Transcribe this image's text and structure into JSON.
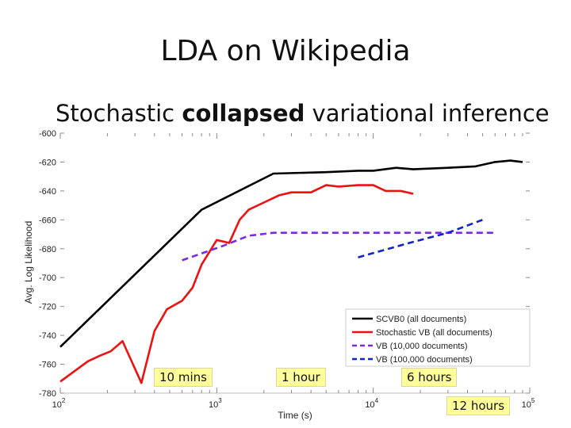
{
  "slide": {
    "title": "LDA on Wikipedia",
    "subtitle_prefix": "Stochastic ",
    "subtitle_bold": "collapsed",
    "subtitle_suffix": " variational inference"
  },
  "callouts": {
    "ten_mins": "10 mins",
    "one_hour": "1 hour",
    "six_hours": "6 hours",
    "twelve_hours": "12 hours"
  },
  "chart_data": {
    "type": "line",
    "title": "",
    "xlabel": "Time (s)",
    "ylabel": "Avg. Log Likelihood",
    "xscale": "log",
    "xlim": [
      100,
      100000
    ],
    "ylim": [
      -780,
      -600
    ],
    "x_ticks": [
      100,
      1000,
      10000,
      100000
    ],
    "x_tick_labels": [
      {
        "base": "10",
        "exp": "2"
      },
      {
        "base": "10",
        "exp": "3"
      },
      {
        "base": "10",
        "exp": "4"
      },
      {
        "base": "10",
        "exp": "5"
      }
    ],
    "y_ticks": [
      -600,
      -620,
      -640,
      -660,
      -680,
      -700,
      -720,
      -740,
      -760,
      -780
    ],
    "y_tick_labels": [
      "-600",
      "-620",
      "-640",
      "-660",
      "-680",
      "-700",
      "-720",
      "-740",
      "-760",
      "-780"
    ],
    "legend_position": "bottom-right",
    "series": [
      {
        "name": "SCVB0 (all documents)",
        "color": "#000000",
        "dash": "solid",
        "points": [
          [
            100,
            -748
          ],
          [
            800,
            -653
          ],
          [
            2300,
            -628
          ],
          [
            5000,
            -627
          ],
          [
            8000,
            -626
          ],
          [
            10000,
            -626
          ],
          [
            14000,
            -624
          ],
          [
            18000,
            -625
          ],
          [
            30000,
            -624
          ],
          [
            45000,
            -623
          ],
          [
            60000,
            -620
          ],
          [
            75000,
            -619
          ],
          [
            90000,
            -620
          ]
        ]
      },
      {
        "name": "Stochastic VB (all documents)",
        "color": "#ee1111",
        "dash": "solid",
        "points": [
          [
            100,
            -772
          ],
          [
            150,
            -758
          ],
          [
            180,
            -754
          ],
          [
            210,
            -751
          ],
          [
            250,
            -744
          ],
          [
            330,
            -773
          ],
          [
            400,
            -737
          ],
          [
            480,
            -722
          ],
          [
            600,
            -716
          ],
          [
            700,
            -707
          ],
          [
            800,
            -691
          ],
          [
            900,
            -682
          ],
          [
            1000,
            -674
          ],
          [
            1200,
            -676
          ],
          [
            1400,
            -660
          ],
          [
            1600,
            -653
          ],
          [
            2000,
            -648
          ],
          [
            2500,
            -643
          ],
          [
            3000,
            -641
          ],
          [
            4000,
            -641
          ],
          [
            5000,
            -636
          ],
          [
            6000,
            -637
          ],
          [
            8000,
            -636
          ],
          [
            10000,
            -636
          ],
          [
            12000,
            -640
          ],
          [
            15000,
            -640
          ],
          [
            18000,
            -642
          ]
        ]
      },
      {
        "name": "VB (10,000 documents)",
        "color": "#7a2be2",
        "dash": "dashed",
        "points": [
          [
            600,
            -688
          ],
          [
            1100,
            -678
          ],
          [
            1600,
            -671
          ],
          [
            2300,
            -669
          ],
          [
            4000,
            -669
          ],
          [
            10000,
            -669
          ],
          [
            30000,
            -669
          ],
          [
            60000,
            -669
          ]
        ]
      },
      {
        "name": "VB (100,000 documents)",
        "color": "#1122cc",
        "dash": "dashed",
        "points": [
          [
            8000,
            -686
          ],
          [
            17000,
            -676
          ],
          [
            30000,
            -669
          ],
          [
            50000,
            -660
          ]
        ]
      }
    ]
  }
}
